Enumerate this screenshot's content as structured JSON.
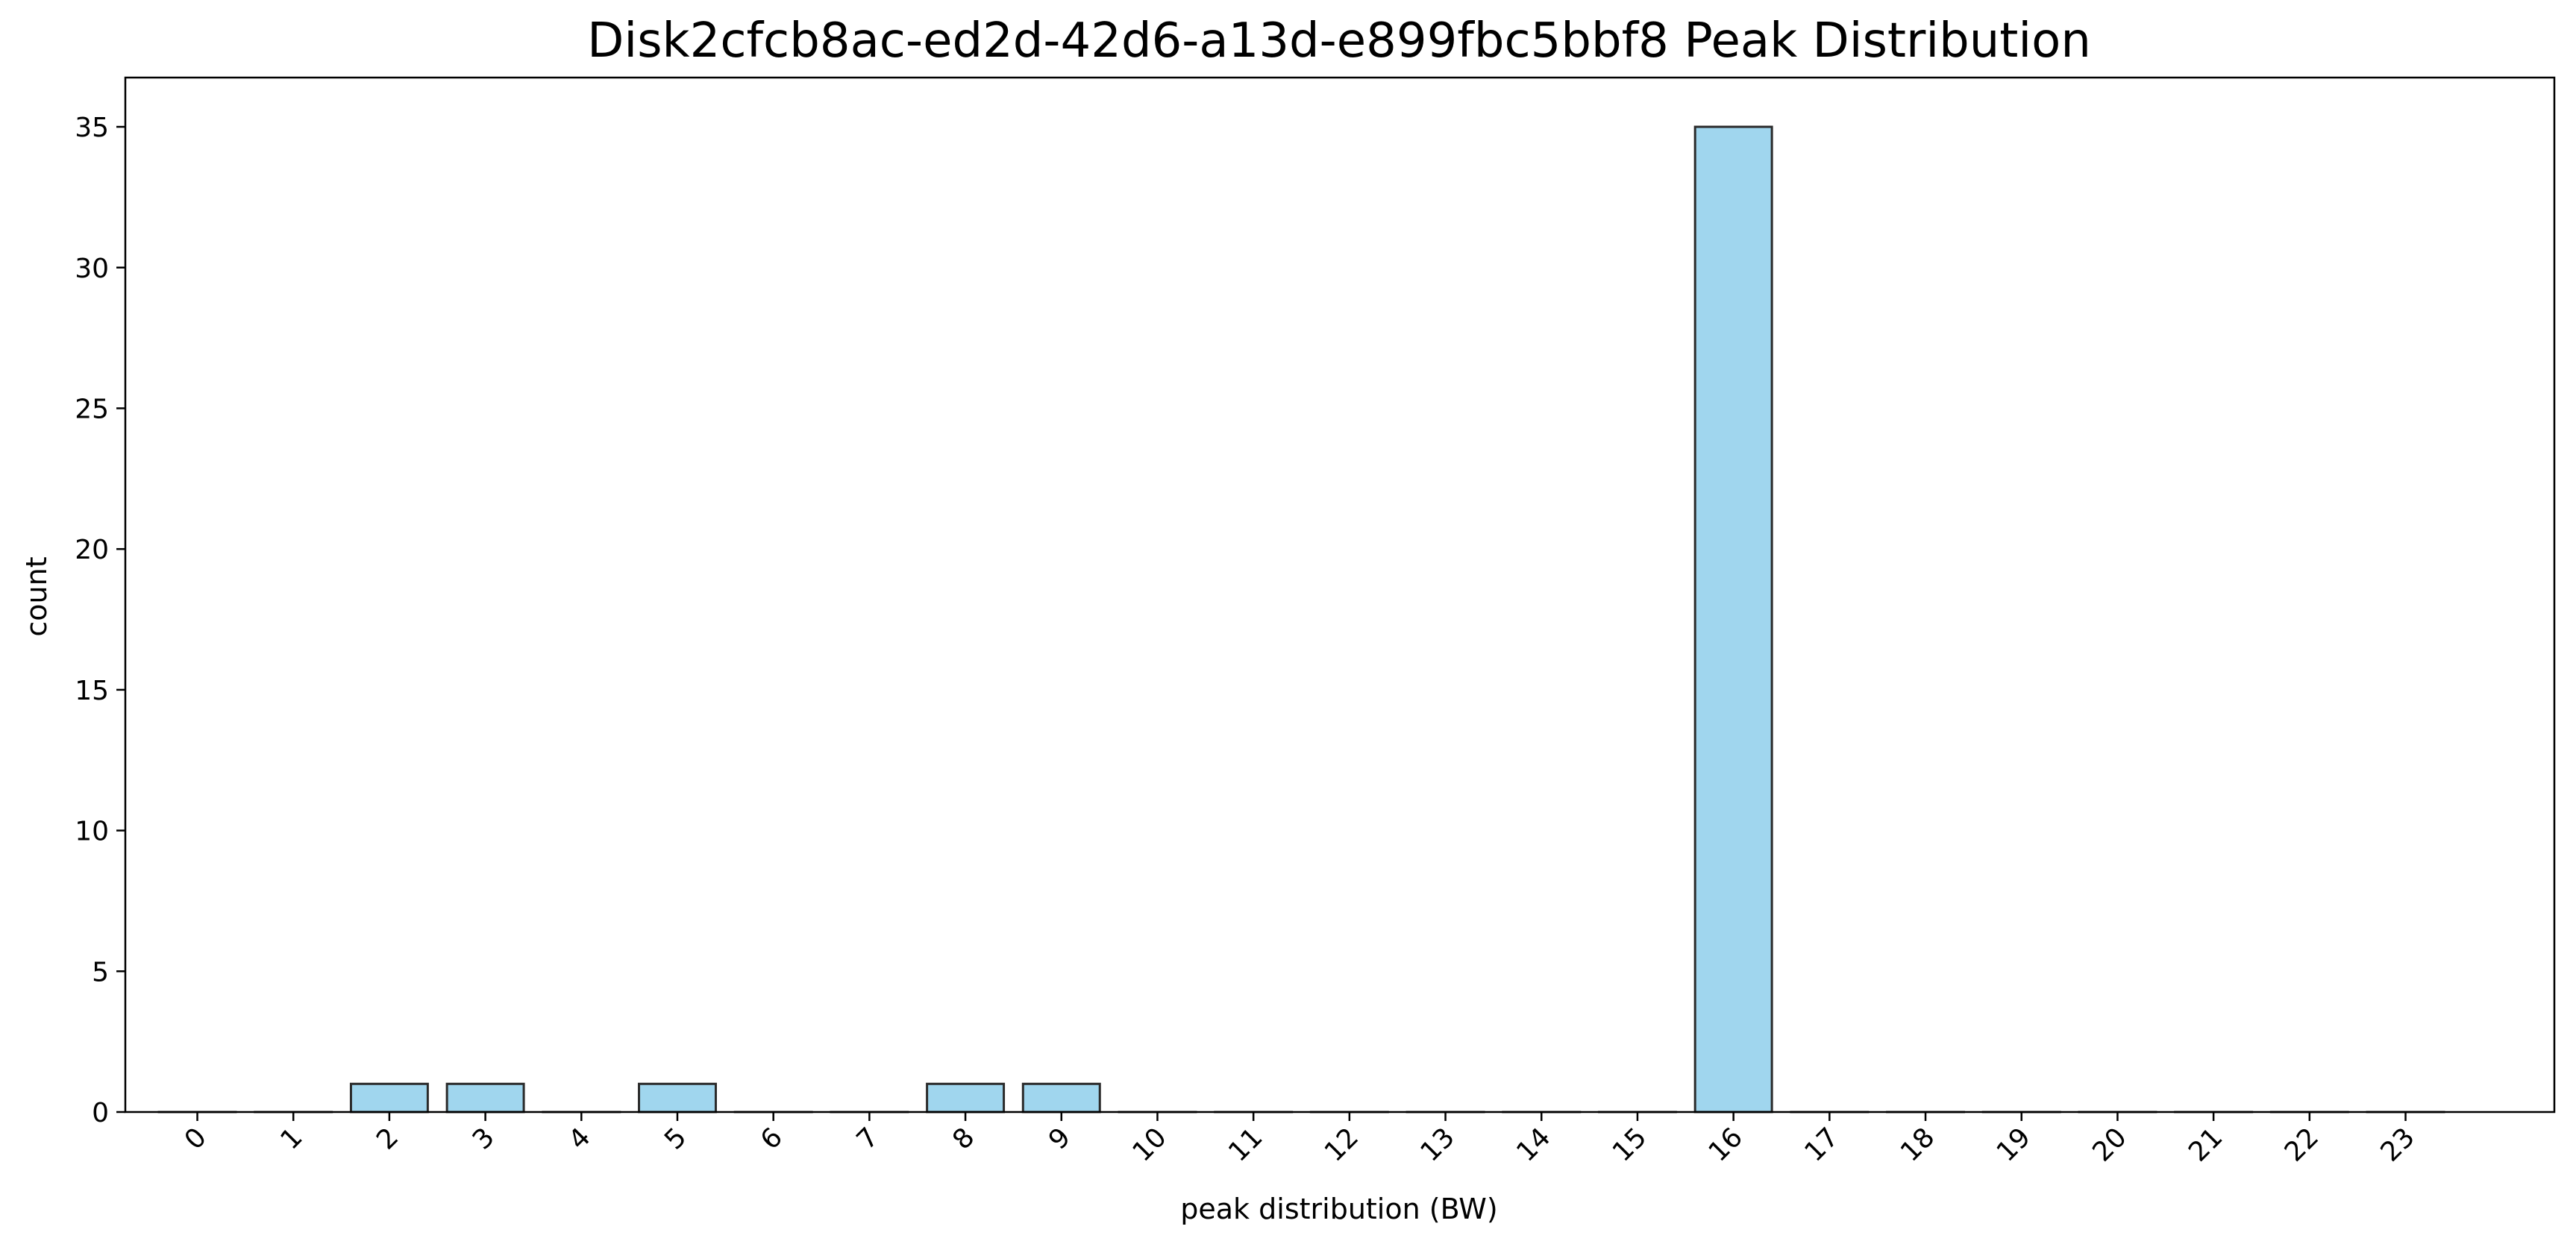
{
  "chart_data": {
    "type": "bar",
    "title": "Disk2cfcb8ac-ed2d-42d6-a13d-e899fbc5bbf8 Peak Distribution",
    "xlabel": "peak distribution (BW)",
    "ylabel": "count",
    "categories": [
      "0",
      "1",
      "2",
      "3",
      "4",
      "5",
      "6",
      "7",
      "8",
      "9",
      "10",
      "11",
      "12",
      "13",
      "14",
      "15",
      "16",
      "17",
      "18",
      "19",
      "20",
      "21",
      "22",
      "23"
    ],
    "values": [
      0,
      0,
      1,
      1,
      0,
      1,
      0,
      0,
      1,
      1,
      0,
      0,
      0,
      0,
      0,
      0,
      35,
      0,
      0,
      0,
      0,
      0,
      0,
      0
    ],
    "ylim": [
      0,
      36.75
    ],
    "yticks": [
      0,
      5,
      10,
      15,
      20,
      25,
      30,
      35
    ],
    "grid": false,
    "bar_color": "#a0d6ee",
    "edge_color": "#2b2b2b"
  }
}
